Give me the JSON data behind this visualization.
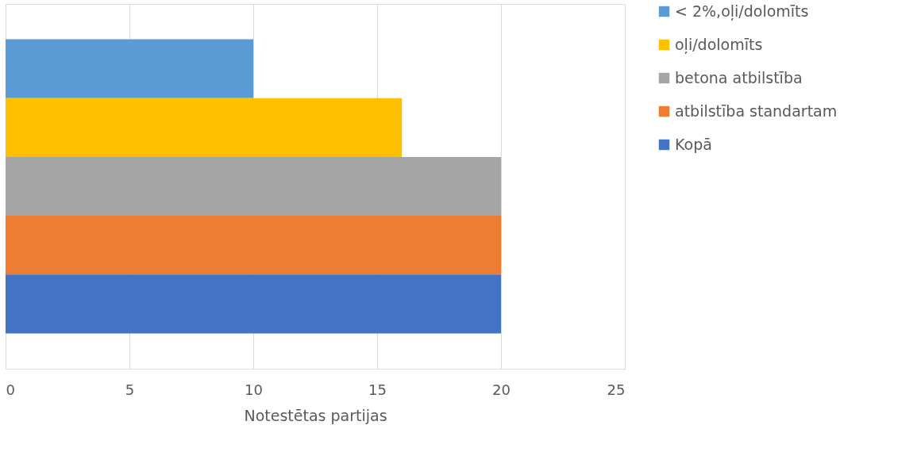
{
  "chart_data": {
    "type": "bar",
    "orientation": "horizontal",
    "categories": [
      null
    ],
    "series": [
      {
        "name": "< 2%,oļi/dolomīts",
        "color": "#5b9bd5",
        "values": [
          10
        ]
      },
      {
        "name": "oļi/dolomīts",
        "color": "#ffc000",
        "values": [
          16
        ]
      },
      {
        "name": "betona atbilstība",
        "color": "#a5a5a5",
        "values": [
          20
        ]
      },
      {
        "name": "atbilstība standartam",
        "color": "#ed7d31",
        "values": [
          20
        ]
      },
      {
        "name": "Kopā",
        "color": "#4472c4",
        "values": [
          20
        ]
      }
    ],
    "xlim": [
      0,
      25
    ],
    "xticks": [
      0,
      5,
      10,
      15,
      20,
      25
    ],
    "xlabel": "Notestētas partijas",
    "grid": "x",
    "legend": "right"
  }
}
